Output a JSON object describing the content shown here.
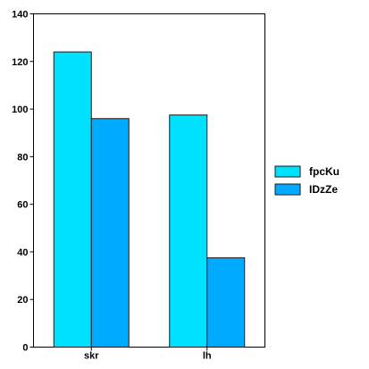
{
  "chart_data": {
    "type": "bar",
    "categories": [
      "skr",
      "lh"
    ],
    "series": [
      {
        "name": "fpcKu",
        "values": [
          124,
          97.5
        ],
        "color": "#00e0ff"
      },
      {
        "name": "IDzZe",
        "values": [
          96,
          37.5
        ],
        "color": "#00aaff"
      }
    ],
    "ylim": [
      0,
      140
    ],
    "yticks": [
      0,
      20,
      40,
      60,
      80,
      100,
      120,
      140
    ],
    "grid": false,
    "legend": "right"
  }
}
